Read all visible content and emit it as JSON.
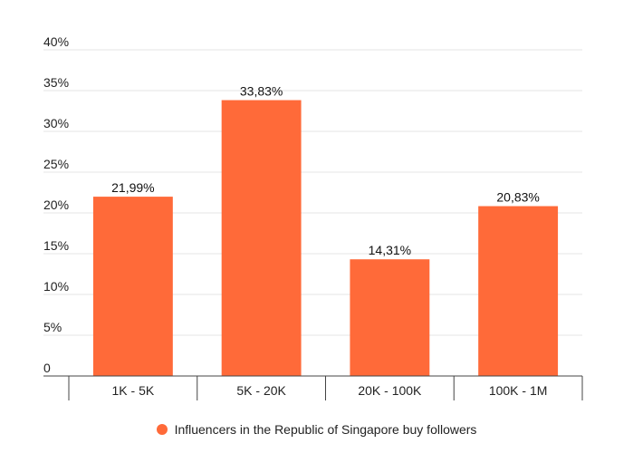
{
  "chart_data": {
    "type": "bar",
    "categories": [
      "1K - 5K",
      "5K - 20K",
      "20K - 100K",
      "100K - 1M"
    ],
    "series": [
      {
        "name": "Influencers in the Republic of Singapore buy followers",
        "values": [
          21.99,
          33.83,
          14.31,
          20.83
        ],
        "data_labels": [
          "21,99%",
          "33,83%",
          "14,31%",
          "20,83%"
        ]
      }
    ],
    "ylim": [
      0,
      40
    ],
    "y_ticks": [
      {
        "value": 0,
        "label": "0"
      },
      {
        "value": 5,
        "label": "5%"
      },
      {
        "value": 10,
        "label": "10%"
      },
      {
        "value": 15,
        "label": "15%"
      },
      {
        "value": 20,
        "label": "20%"
      },
      {
        "value": 25,
        "label": "25%"
      },
      {
        "value": 30,
        "label": "30%"
      },
      {
        "value": 35,
        "label": "35%"
      },
      {
        "value": 40,
        "label": "40%"
      }
    ],
    "grid": true,
    "legend_position": "bottom",
    "colors": {
      "bar": "#ff6a39",
      "grid": "#e6e6e6",
      "axis": "#444444"
    }
  }
}
